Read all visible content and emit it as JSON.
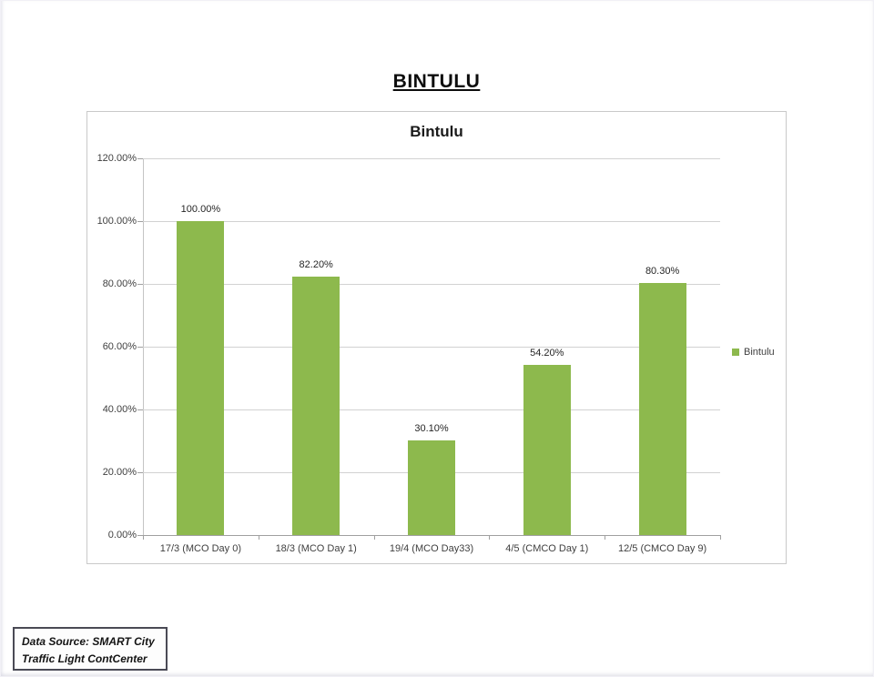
{
  "page": {
    "main_title": "BINTULU",
    "source_line1": "Data Source: SMART City",
    "source_line2": "Traffic Light ContCenter"
  },
  "chart_data": {
    "type": "bar",
    "title": "Bintulu",
    "legend": {
      "label": "Bintulu",
      "position": "right"
    },
    "categories": [
      "17/3 (MCO Day 0)",
      "18/3 (MCO Day 1)",
      "19/4 (MCO Day33)",
      "4/5 (CMCO Day 1)",
      "12/5 (CMCO Day 9)"
    ],
    "values": [
      100.0,
      82.2,
      30.1,
      54.2,
      80.3
    ],
    "value_labels": [
      "100.00%",
      "82.20%",
      "30.10%",
      "54.20%",
      "80.30%"
    ],
    "ylim": [
      0,
      120
    ],
    "ytick_labels": [
      "0.00%",
      "20.00%",
      "40.00%",
      "60.00%",
      "80.00%",
      "100.00%",
      "120.00%"
    ],
    "grid": true,
    "colors": {
      "bar": "#8db94d",
      "gridline": "#d2d2d2",
      "axis_line": "#a0a0a0",
      "axis_text": "#3f3f3f",
      "chart_border": "#c9c9c9"
    }
  }
}
